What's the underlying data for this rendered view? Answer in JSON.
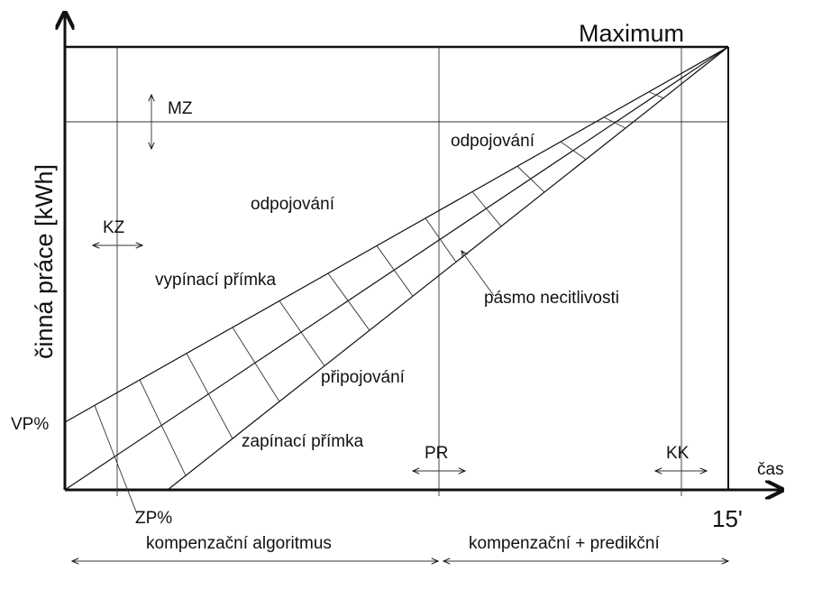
{
  "labels": {
    "maximum": "Maximum",
    "mz": "MZ",
    "odpojovani_top": "odpojování",
    "odpojovani_left": "odpojování",
    "kz": "KZ",
    "vypinaci": "vypínací přímka",
    "pasmo": "pásmo necitlivosti",
    "pripojovani": "připojování",
    "zapinaci": "zapínací přímka",
    "vp": "VP%",
    "pr": "PR",
    "kk": "KK",
    "cas": "čas",
    "minutes": "15'",
    "zp": "ZP%",
    "y_axis": "činná práce [kWh]",
    "komp_alg": "kompenzační algoritmus",
    "komp_pred": "kompenzační + predikční"
  }
}
